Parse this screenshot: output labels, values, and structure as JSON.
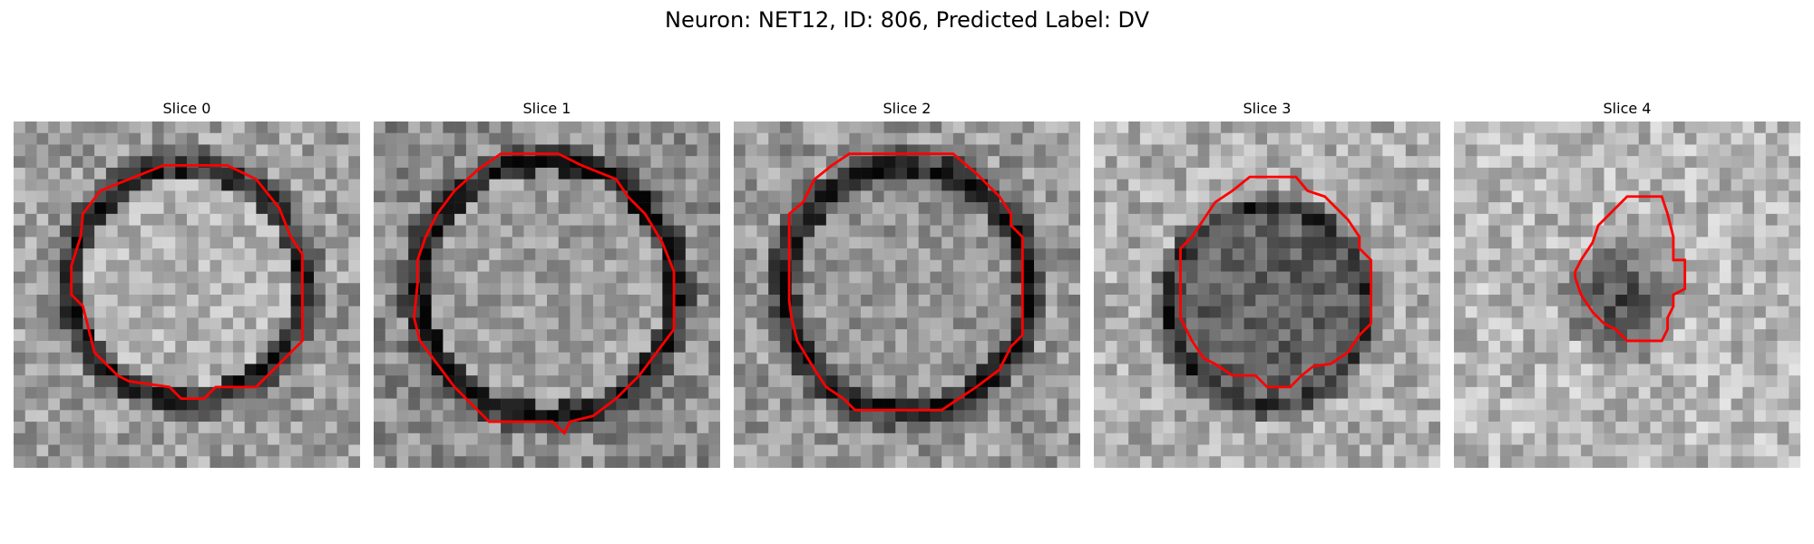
{
  "figure": {
    "title": "Neuron: NET12, ID: 806, Predicted Label: DV"
  },
  "contour_color": "#ff0000",
  "slices": [
    {
      "title": "Slice 0"
    },
    {
      "title": "Slice 1"
    },
    {
      "title": "Slice 2"
    },
    {
      "title": "Slice 3"
    },
    {
      "title": "Slice 4"
    }
  ]
}
